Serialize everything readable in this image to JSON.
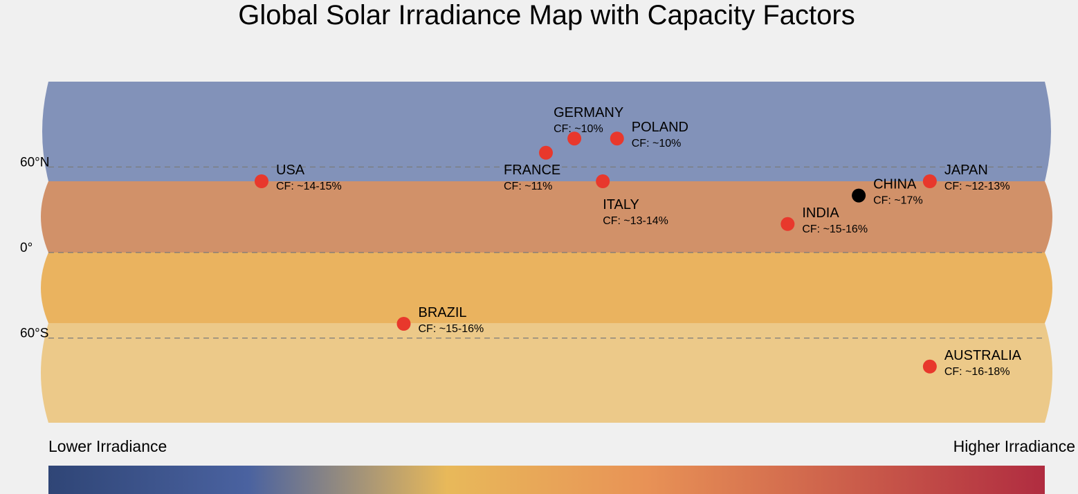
{
  "title": "Global Solar Irradiance Map with Capacity Factors",
  "colors": {
    "background": "#f0f0f0",
    "band_north": "#8292b9",
    "band_north_mid": "#d19169",
    "band_south_mid": "#eab35f",
    "band_south": "#ecc989",
    "marker_default": "#e8382c",
    "marker_highlight": "#000000",
    "gridline": "#7a7a7a",
    "gradient": [
      "#2f4576",
      "#4a62a0",
      "#e8b95a",
      "#e89256",
      "#b02c40"
    ]
  },
  "latitude_labels": [
    {
      "lat": 60,
      "label": "60°N"
    },
    {
      "lat": 0,
      "label": "0°"
    },
    {
      "lat": -60,
      "label": "60°S"
    }
  ],
  "locations": [
    {
      "name": "USA",
      "cf": "CF: ~14-15%",
      "lon": -100,
      "lat": 50,
      "color": "#e8382c",
      "label_pos": "right-above"
    },
    {
      "name": "BRAZIL",
      "cf": "CF: ~15-16%",
      "lon": -50,
      "lat": -50,
      "color": "#e8382c",
      "label_pos": "right-above"
    },
    {
      "name": "FRANCE",
      "cf": "CF: ~11%",
      "lon": 0,
      "lat": 70,
      "color": "#e8382c",
      "label_pos": "left-below"
    },
    {
      "name": "GERMANY",
      "cf": "CF: ~10%",
      "lon": 10,
      "lat": 80,
      "color": "#e8382c",
      "label_pos": "left-above"
    },
    {
      "name": "POLAND",
      "cf": "CF: ~10%",
      "lon": 25,
      "lat": 80,
      "color": "#e8382c",
      "label_pos": "right-above"
    },
    {
      "name": "ITALY",
      "cf": "CF: ~13-14%",
      "lon": 20,
      "lat": 50,
      "color": "#e8382c",
      "label_pos": "below"
    },
    {
      "name": "INDIA",
      "cf": "CF: ~15-16%",
      "lon": 85,
      "lat": 20,
      "color": "#e8382c",
      "label_pos": "right-above"
    },
    {
      "name": "CHINA",
      "cf": "CF: ~17%",
      "lon": 110,
      "lat": 40,
      "color": "#000000",
      "label_pos": "right-above"
    },
    {
      "name": "JAPAN",
      "cf": "CF: ~12-13%",
      "lon": 135,
      "lat": 50,
      "color": "#e8382c",
      "label_pos": "right-above"
    },
    {
      "name": "AUSTRALIA",
      "cf": "CF: ~16-18%",
      "lon": 135,
      "lat": -80,
      "color": "#e8382c",
      "label_pos": "right-above"
    }
  ],
  "legend": {
    "low_label": "Lower Irradiance",
    "high_label": "Higher Irradiance"
  }
}
